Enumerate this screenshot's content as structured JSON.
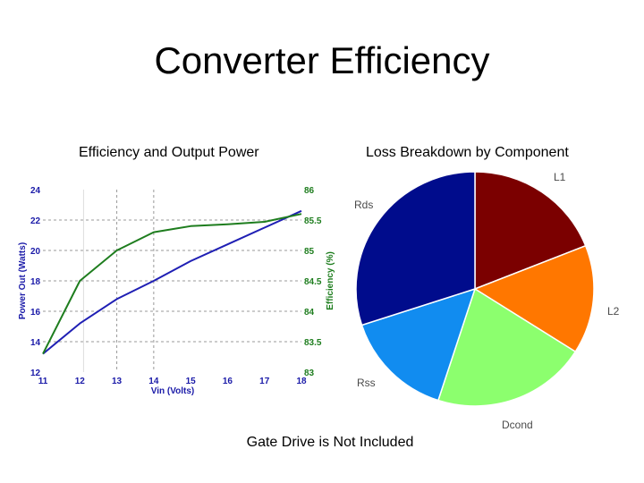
{
  "title": "Converter Efficiency",
  "footer_note": "Gate Drive is Not Included",
  "colors": {
    "power_line": "#1f1fb4",
    "efficiency_line": "#1e7d1e",
    "grid": "#999999"
  },
  "chart_data": [
    {
      "type": "line",
      "title": "Efficiency and Output Power",
      "xlabel": "Vin (Volts)",
      "ylabel_left": "Power Out (Watts)",
      "ylabel_right": "Efficiency (%)",
      "x_ticks": [
        11,
        12,
        13,
        14,
        15,
        16,
        17,
        18
      ],
      "y_left_ticks": [
        12,
        14,
        16,
        18,
        20,
        22,
        24
      ],
      "y_right_ticks": [
        83,
        83.5,
        84,
        84.5,
        85,
        85.5,
        86
      ],
      "xlim": [
        11,
        18
      ],
      "ylim_left": [
        12,
        24
      ],
      "ylim_right": [
        83,
        86
      ],
      "grid": true,
      "series": [
        {
          "name": "Power Out (Watts)",
          "axis": "left",
          "color": "#1f1fb4",
          "x": [
            11,
            12,
            13,
            14,
            15,
            16,
            17,
            18
          ],
          "y": [
            13.2,
            15.2,
            16.8,
            18.0,
            19.3,
            20.4,
            21.5,
            22.6
          ]
        },
        {
          "name": "Efficiency (%)",
          "axis": "right",
          "color": "#1e7d1e",
          "x": [
            11,
            12,
            13,
            14,
            15,
            16,
            17,
            18
          ],
          "y": [
            83.3,
            84.5,
            85.0,
            85.3,
            85.4,
            85.43,
            85.47,
            85.6
          ]
        }
      ]
    },
    {
      "type": "pie",
      "title": "Loss Breakdown by Component",
      "slices": [
        {
          "label": "L1",
          "value": 19,
          "color": "#7b0000"
        },
        {
          "label": "L2",
          "value": 15,
          "color": "#ff7700"
        },
        {
          "label": "Dcond",
          "value": 21,
          "color": "#8cff6e"
        },
        {
          "label": "Rss",
          "value": 15,
          "color": "#118cf0"
        },
        {
          "label": "Rds",
          "value": 30,
          "color": "#000c8c"
        }
      ]
    }
  ]
}
